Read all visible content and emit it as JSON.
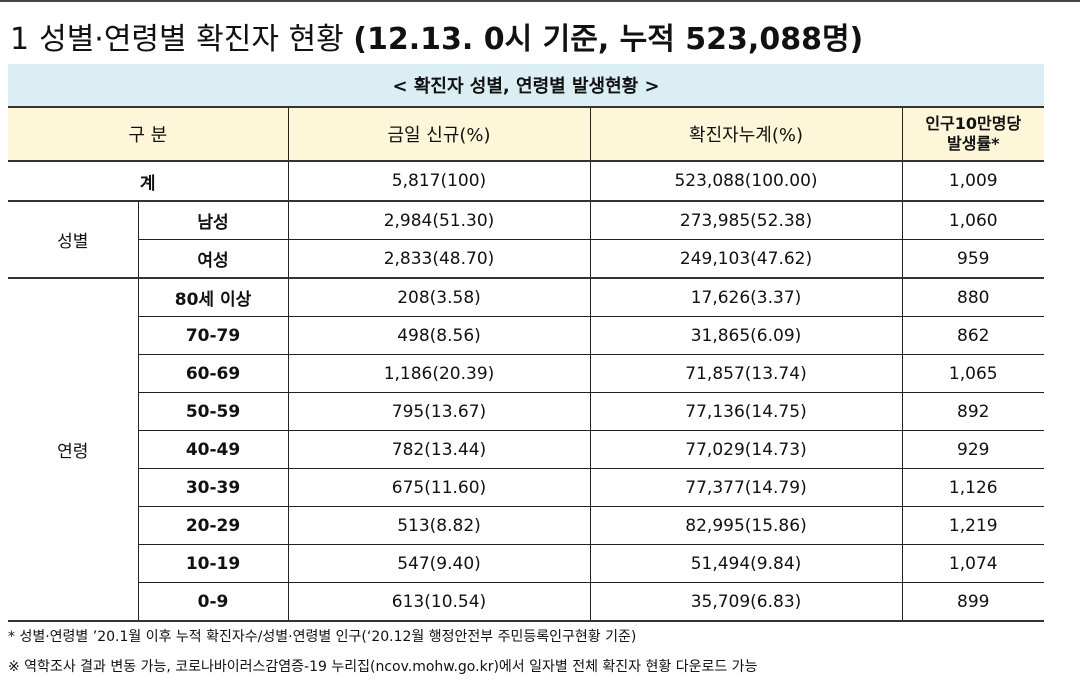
{
  "title": {
    "number": "1",
    "text": "성별·연령별 확진자 현황",
    "basis": "(12.13. 0시 기준, 누적 523,088명)"
  },
  "table": {
    "caption": "< 확진자 성별, 연령별 발생현황 >",
    "headers": {
      "category": "구 분",
      "today": "금일 신규(%)",
      "cumulative": "확진자누계(%)",
      "rate_line1": "인구10만명당",
      "rate_line2": "발생률*"
    },
    "total": {
      "label": "계",
      "today": "5,817(100)",
      "cumulative": "523,088(100.00)",
      "rate": "1,009"
    },
    "gender": {
      "label": "성별",
      "rows": [
        {
          "label": "남성",
          "today": "2,984(51.30)",
          "cumulative": "273,985(52.38)",
          "rate": "1,060"
        },
        {
          "label": "여성",
          "today": "2,833(48.70)",
          "cumulative": "249,103(47.62)",
          "rate": "959"
        }
      ]
    },
    "age": {
      "label": "연령",
      "rows": [
        {
          "label": "80세 이상",
          "today": "208(3.58)",
          "cumulative": "17,626(3.37)",
          "rate": "880"
        },
        {
          "label": "70-79",
          "today": "498(8.56)",
          "cumulative": "31,865(6.09)",
          "rate": "862"
        },
        {
          "label": "60-69",
          "today": "1,186(20.39)",
          "cumulative": "71,857(13.74)",
          "rate": "1,065"
        },
        {
          "label": "50-59",
          "today": "795(13.67)",
          "cumulative": "77,136(14.75)",
          "rate": "892"
        },
        {
          "label": "40-49",
          "today": "782(13.44)",
          "cumulative": "77,029(14.73)",
          "rate": "929"
        },
        {
          "label": "30-39",
          "today": "675(11.60)",
          "cumulative": "77,377(14.79)",
          "rate": "1,126"
        },
        {
          "label": "20-29",
          "today": "513(8.82)",
          "cumulative": "82,995(15.86)",
          "rate": "1,219"
        },
        {
          "label": "10-19",
          "today": "547(9.40)",
          "cumulative": "51,494(9.84)",
          "rate": "1,074"
        },
        {
          "label": "0-9",
          "today": "613(10.54)",
          "cumulative": "35,709(6.83)",
          "rate": "899"
        }
      ]
    }
  },
  "notes": [
    "* 성별·연령별 ’20.1월 이후 누적 확진자수/성별·연령별 인구(‘20.12월 행정안전부 주민등록인구현황 기준)",
    "※ 역학조사 결과 변동 가능, 코로나바이러스감염증-19 누리집(ncov.mohw.go.kr)에서 일자별 전체 확진자 현황 다운로드 가능"
  ]
}
